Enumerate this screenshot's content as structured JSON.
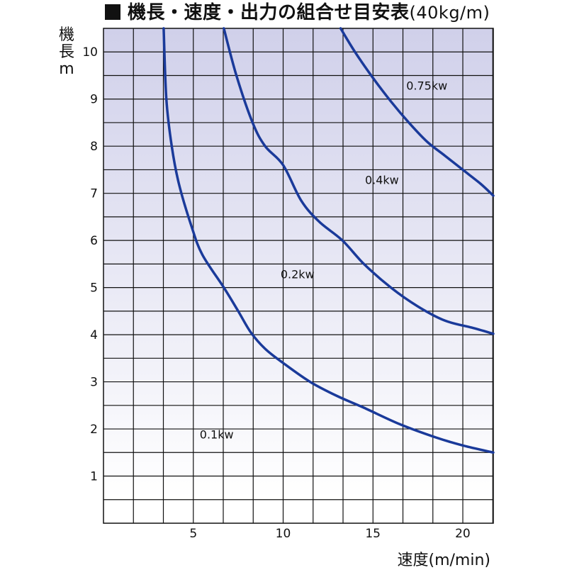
{
  "chart_data": {
    "type": "line",
    "title": "機長・速度・出力の組合せ目安表",
    "title_unit": "(40kg/m)",
    "xlabel": "速度(m/min)",
    "ylabel_lines": [
      "機",
      "長",
      "m"
    ],
    "xlim": [
      0,
      21.7
    ],
    "ylim": [
      0,
      10.5
    ],
    "x_ticks": [
      5,
      10,
      15,
      20
    ],
    "y_ticks": [
      1,
      2,
      3,
      4,
      5,
      6,
      7,
      8,
      9,
      10
    ],
    "grid": true,
    "grid_step_x": 1.667,
    "grid_step_y": 0.5,
    "background_gradient": [
      "#d0d0ea",
      "#ffffff"
    ],
    "line_color": "#1a3a9a",
    "series": [
      {
        "name": "0.1kw",
        "points": [
          [
            3.35,
            10.5
          ],
          [
            3.5,
            9.0
          ],
          [
            3.8,
            8.0
          ],
          [
            4.2,
            7.2
          ],
          [
            4.9,
            6.3
          ],
          [
            5.5,
            5.7
          ],
          [
            6.7,
            5.0
          ],
          [
            7.5,
            4.5
          ],
          [
            8.2,
            4.05
          ],
          [
            9.0,
            3.7
          ],
          [
            10.0,
            3.4
          ],
          [
            11.5,
            3.0
          ],
          [
            13.0,
            2.7
          ],
          [
            14.5,
            2.45
          ],
          [
            16.5,
            2.1
          ],
          [
            18.5,
            1.82
          ],
          [
            20.0,
            1.65
          ],
          [
            21.7,
            1.5
          ]
        ]
      },
      {
        "name": "0.2kw",
        "points": [
          [
            6.7,
            10.5
          ],
          [
            7.4,
            9.5
          ],
          [
            8.3,
            8.5
          ],
          [
            9.0,
            8.0
          ],
          [
            10.0,
            7.6
          ],
          [
            11.0,
            6.85
          ],
          [
            12.0,
            6.4
          ],
          [
            13.3,
            6.0
          ],
          [
            14.5,
            5.5
          ],
          [
            16.0,
            5.0
          ],
          [
            17.5,
            4.6
          ],
          [
            19.0,
            4.3
          ],
          [
            20.5,
            4.15
          ],
          [
            21.7,
            4.02
          ]
        ]
      },
      {
        "name": "0.4kw",
        "points": [
          [
            13.2,
            10.5
          ],
          [
            14.0,
            10.0
          ],
          [
            15.0,
            9.45
          ],
          [
            16.0,
            8.95
          ],
          [
            17.0,
            8.5
          ],
          [
            18.0,
            8.1
          ],
          [
            19.0,
            7.8
          ],
          [
            20.0,
            7.5
          ],
          [
            21.0,
            7.2
          ],
          [
            21.7,
            6.95
          ]
        ]
      },
      {
        "name": "0.75kw",
        "points": []
      }
    ],
    "curve_labels": [
      {
        "text": "0.1kw",
        "x": 6.3,
        "y": 1.8
      },
      {
        "text": "0.2kw",
        "x": 10.8,
        "y": 5.2
      },
      {
        "text": "0.4kw",
        "x": 15.5,
        "y": 7.2
      },
      {
        "text": "0.75kw",
        "x": 18.0,
        "y": 9.2
      }
    ]
  }
}
